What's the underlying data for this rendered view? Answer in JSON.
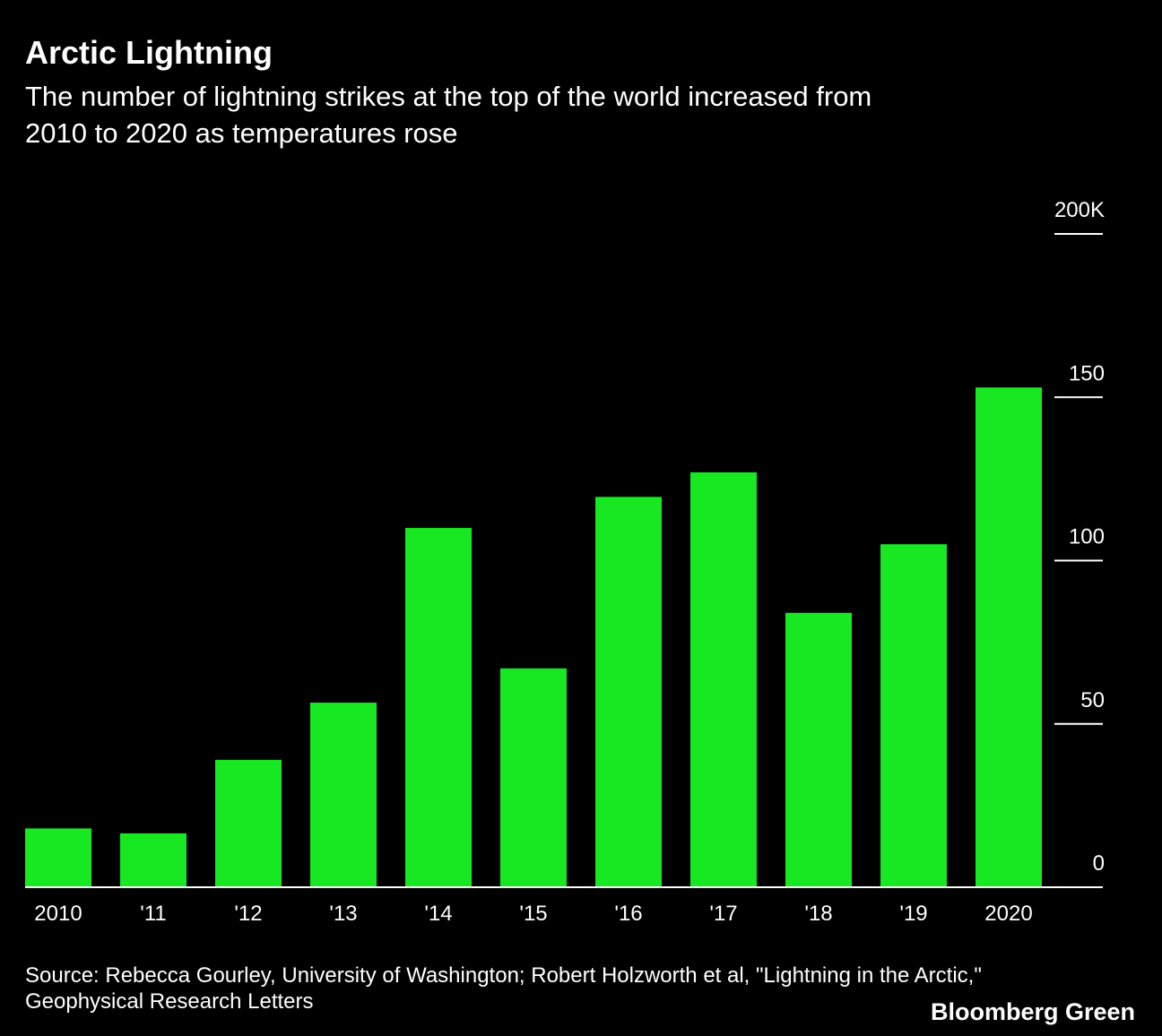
{
  "chart_data": {
    "type": "bar",
    "title": "Arctic Lightning",
    "subtitle": [
      "The number of lightning strikes at the top of the world increased from",
      "2010 to 2020 as temperatures rose"
    ],
    "categories": [
      "2010",
      "'11",
      "'12",
      "'13",
      "'14",
      "'15",
      "'16",
      "'17",
      "'18",
      "'19",
      "2020"
    ],
    "values": [
      18,
      16.5,
      39,
      56.5,
      110,
      67,
      119.5,
      127,
      84,
      105,
      153
    ],
    "color": "#17e822",
    "ylim": [
      0,
      200
    ],
    "yticks": [
      0,
      50,
      100,
      150,
      {
        "value": 200,
        "label": "200K"
      }
    ],
    "source": [
      "Source: Rebecca Gourley, University of Washington; Robert Holzworth et al, \"Lightning in the Arctic,\"",
      "Geophysical Research Letters"
    ],
    "branding": "Bloomberg Green"
  }
}
